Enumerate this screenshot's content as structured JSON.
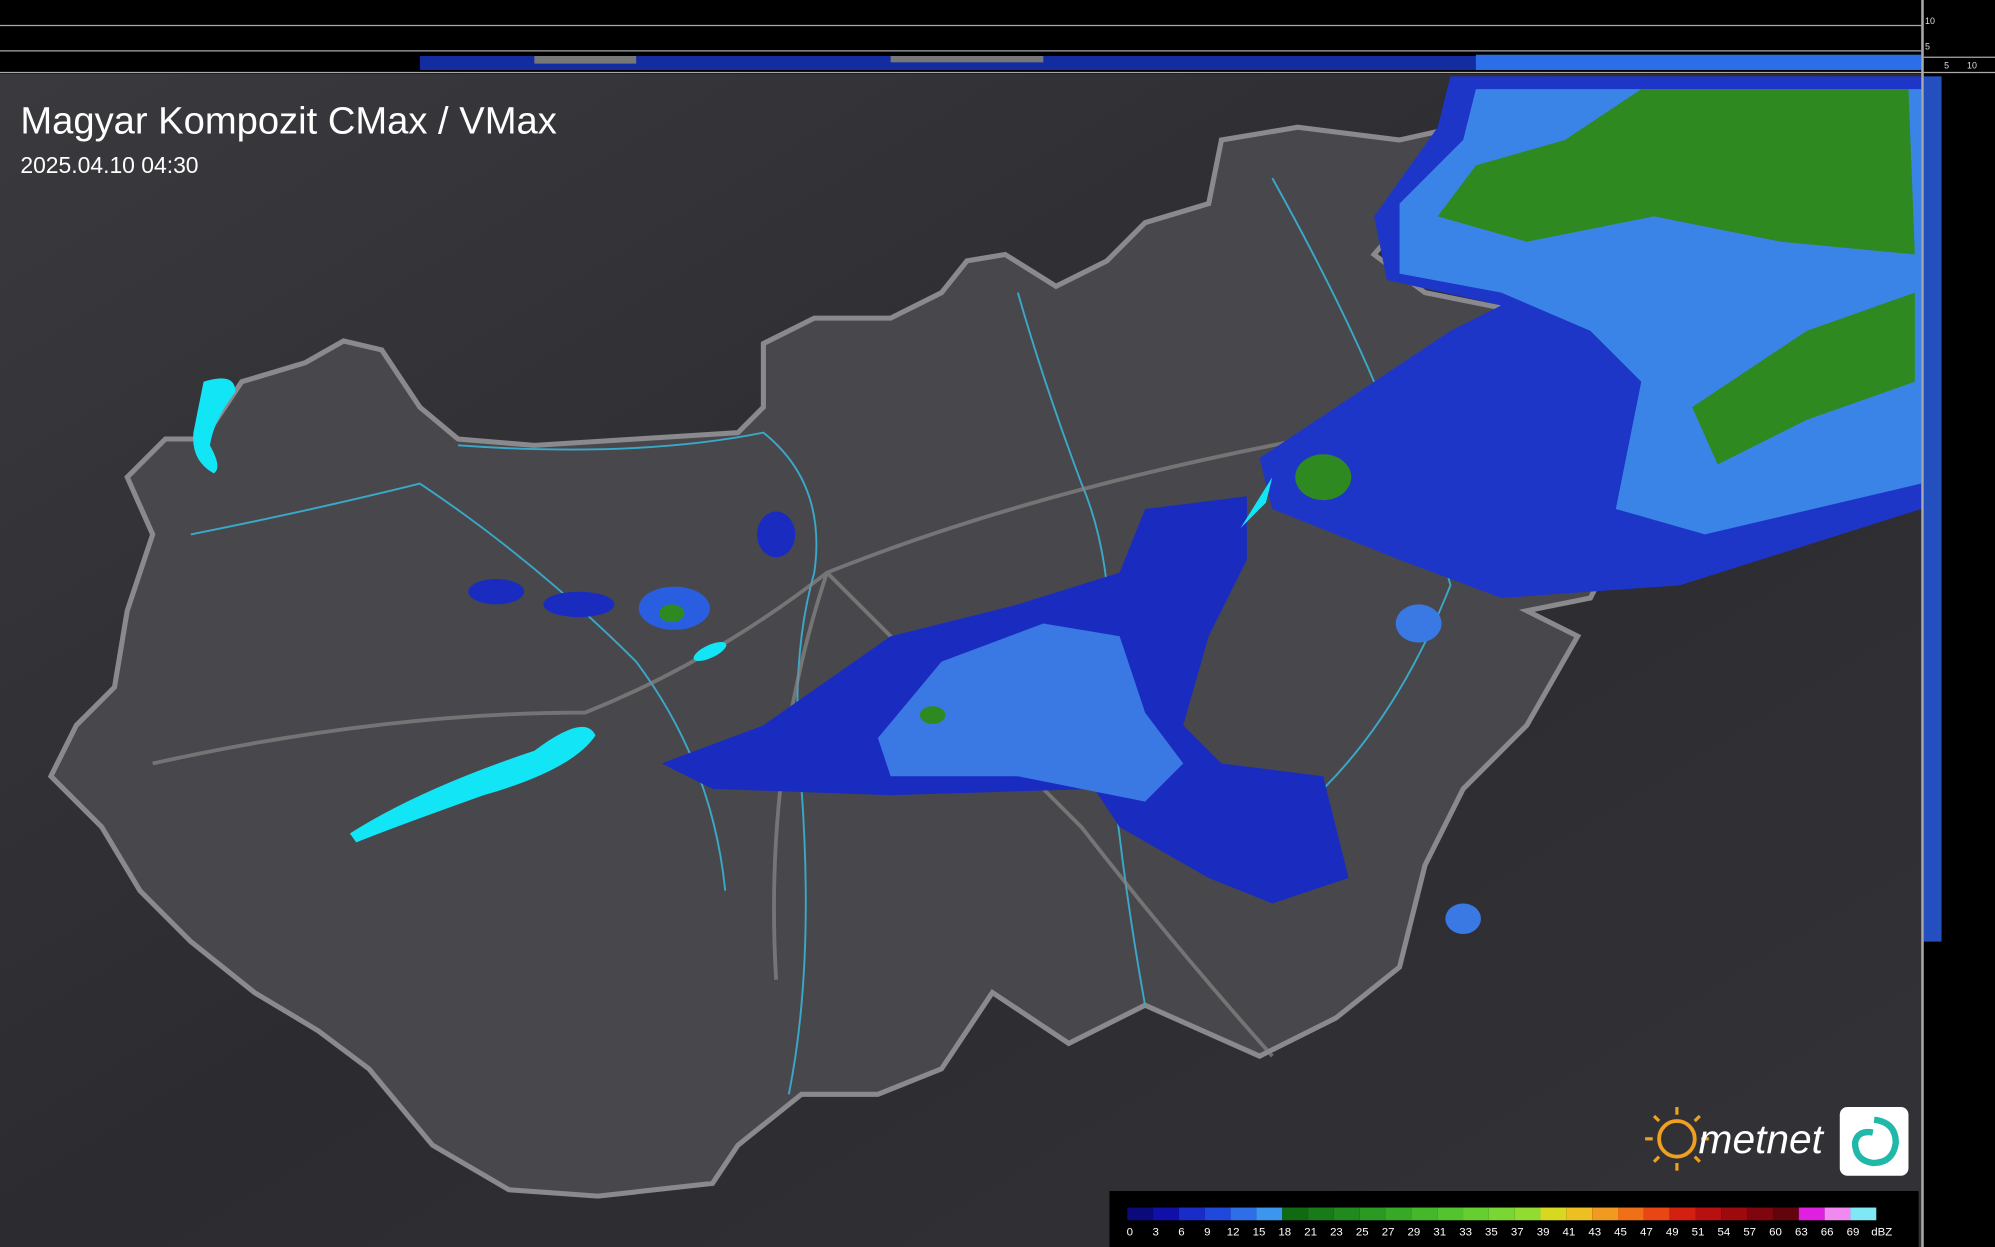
{
  "header": {
    "title": "Magyar Kompozit CMax / VMax",
    "timestamp": "2025.04.10 04:30"
  },
  "side_scale": {
    "top_labels": [
      "10",
      "5"
    ],
    "right_labels": [
      "5",
      "10"
    ]
  },
  "logo": {
    "text": "metnet"
  },
  "legend": {
    "unit": "dBZ",
    "labels": [
      0,
      3,
      6,
      9,
      12,
      15,
      18,
      21,
      23,
      25,
      27,
      29,
      31,
      33,
      35,
      37,
      39,
      41,
      43,
      45,
      47,
      49,
      51,
      54,
      57,
      60,
      63,
      66,
      69
    ],
    "colors": [
      "#0a0a7a",
      "#1010a8",
      "#1a2cc8",
      "#2048dc",
      "#2e6ee6",
      "#3c96ee",
      "#0f6a12",
      "#187a18",
      "#208a1e",
      "#2a9a22",
      "#36aa26",
      "#44b82a",
      "#54c42e",
      "#66ce30",
      "#7ad632",
      "#92dc32",
      "#d8d820",
      "#ecc020",
      "#f09a20",
      "#f07018",
      "#e84614",
      "#d42010",
      "#b81010",
      "#9c0a0e",
      "#80060e",
      "#62040c",
      "#e020e0",
      "#f08af0",
      "#80e8f4"
    ]
  }
}
